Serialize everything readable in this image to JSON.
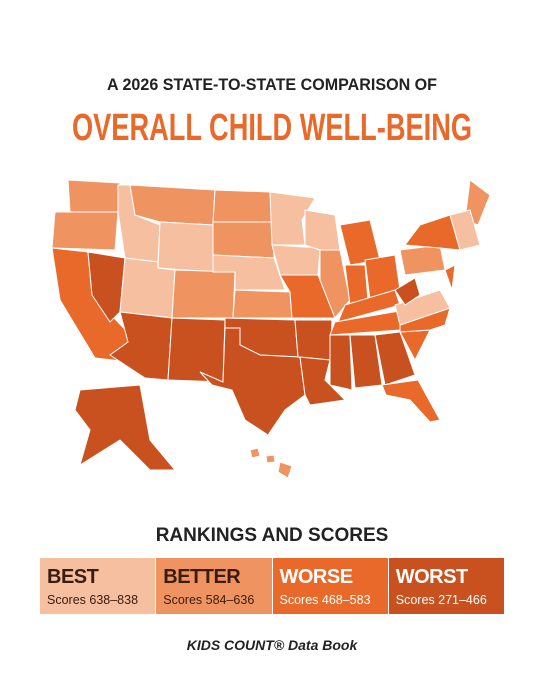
{
  "header": {
    "subtitle": "A 2026 STATE-TO-STATE COMPARISON OF",
    "title": "OVERALL CHILD WELL-BEING"
  },
  "legend": {
    "title": "RANKINGS AND SCORES",
    "items": [
      {
        "label": "BEST",
        "scores": "Scores 638–838",
        "color": "#f5bfa0"
      },
      {
        "label": "BETTER",
        "scores": "Scores 584–636",
        "color": "#ef9461"
      },
      {
        "label": "WORSE",
        "scores": "Scores 468–583",
        "color": "#e8692a"
      },
      {
        "label": "WORST",
        "scores": "Scores 271–466",
        "color": "#c9511f"
      }
    ]
  },
  "footer": "KIDS COUNT® Data Book"
}
